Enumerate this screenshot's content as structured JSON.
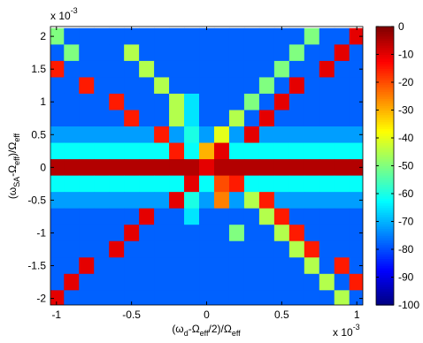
{
  "chart_data": {
    "type": "heatmap",
    "xlabel": [
      "(ω",
      "d",
      "-Ω",
      "eff",
      "/2)/Ω",
      "eff"
    ],
    "ylabel": [
      "(ω",
      "SA",
      "-Ω",
      "eff",
      ")/Ω",
      "eff"
    ],
    "xexp": [
      "x 10",
      "-3"
    ],
    "yexp": [
      "x 10",
      "-3"
    ],
    "colormap": "jet",
    "x": [
      -1,
      -0.9,
      -0.8,
      -0.7,
      -0.6,
      -0.5,
      -0.4,
      -0.3,
      -0.2,
      -0.1,
      0,
      0.1,
      0.2,
      0.3,
      0.4,
      0.5,
      0.6,
      0.7,
      0.8,
      0.9,
      1
    ],
    "y": [
      2,
      1.75,
      1.5,
      1.25,
      1,
      0.75,
      0.5,
      0.25,
      0,
      -0.25,
      -0.5,
      -0.75,
      -1,
      -1.25,
      -1.5,
      -1.75,
      -2
    ],
    "z": [
      [
        -50,
        -78,
        -78,
        -78,
        -78,
        -78,
        -78,
        -78,
        -78,
        -78,
        -78,
        -78,
        -78,
        -78,
        -78,
        -78,
        -78,
        -50,
        -78,
        -78,
        -10
      ],
      [
        -78,
        -50,
        -78,
        -78,
        -78,
        -45,
        -78,
        -78,
        -78,
        -78,
        -78,
        -78,
        -78,
        -78,
        -78,
        -78,
        -50,
        -78,
        -78,
        -10,
        -78
      ],
      [
        -15,
        -78,
        -78,
        -78,
        -78,
        -78,
        -45,
        -78,
        -78,
        -78,
        -78,
        -78,
        -78,
        -78,
        -78,
        -50,
        -78,
        -78,
        -10,
        -78,
        -78
      ],
      [
        -78,
        -78,
        -15,
        -78,
        -78,
        -78,
        -78,
        -45,
        -78,
        -78,
        -78,
        -78,
        -78,
        -78,
        -50,
        -78,
        -10,
        -78,
        -78,
        -78,
        -78
      ],
      [
        -78,
        -78,
        -78,
        -78,
        -15,
        -78,
        -78,
        -78,
        -45,
        -65,
        -78,
        -78,
        -78,
        -50,
        -78,
        -10,
        -78,
        -78,
        -78,
        -78,
        -78
      ],
      [
        -78,
        -78,
        -78,
        -78,
        -78,
        -15,
        -78,
        -78,
        -45,
        -65,
        -78,
        -78,
        -45,
        -78,
        -10,
        -78,
        -78,
        -78,
        -78,
        -78,
        -78
      ],
      [
        -72,
        -72,
        -72,
        -72,
        -72,
        -72,
        -72,
        -15,
        -72,
        -60,
        -72,
        -40,
        -72,
        -10,
        -72,
        -72,
        -72,
        -72,
        -72,
        -72,
        -72
      ],
      [
        -62,
        -62,
        -62,
        -62,
        -62,
        -62,
        -62,
        -62,
        -15,
        -62,
        -30,
        -10,
        -62,
        -62,
        -62,
        -62,
        -62,
        -62,
        -62,
        -62,
        -62
      ],
      [
        -5,
        -5,
        -5,
        -5,
        -5,
        -5,
        -5,
        -5,
        -5,
        -5,
        -10,
        -5,
        -5,
        -5,
        -5,
        -5,
        -5,
        -5,
        -5,
        -5,
        -5
      ],
      [
        -62,
        -62,
        -62,
        -62,
        -62,
        -62,
        -62,
        -62,
        -62,
        -10,
        -62,
        -20,
        -15,
        -62,
        -62,
        -62,
        -62,
        -62,
        -62,
        -62,
        -62
      ],
      [
        -72,
        -72,
        -72,
        -72,
        -72,
        -72,
        -72,
        -72,
        -10,
        -60,
        -72,
        -25,
        -72,
        -45,
        -15,
        -72,
        -72,
        -72,
        -72,
        -72,
        -72
      ],
      [
        -78,
        -78,
        -78,
        -78,
        -78,
        -78,
        -10,
        -78,
        -78,
        -65,
        -78,
        -78,
        -78,
        -78,
        -45,
        -15,
        -78,
        -78,
        -78,
        -78,
        -78
      ],
      [
        -78,
        -78,
        -78,
        -78,
        -78,
        -10,
        -78,
        -78,
        -78,
        -78,
        -78,
        -78,
        -50,
        -78,
        -78,
        -45,
        -15,
        -78,
        -78,
        -78,
        -78
      ],
      [
        -78,
        -78,
        -78,
        -78,
        -10,
        -78,
        -78,
        -78,
        -78,
        -78,
        -78,
        -78,
        -78,
        -78,
        -78,
        -78,
        -45,
        -15,
        -78,
        -78,
        -78
      ],
      [
        -78,
        -78,
        -10,
        -78,
        -78,
        -78,
        -78,
        -78,
        -78,
        -78,
        -78,
        -78,
        -78,
        -78,
        -78,
        -78,
        -78,
        -45,
        -78,
        -15,
        -78
      ],
      [
        -78,
        -10,
        -78,
        -78,
        -78,
        -78,
        -78,
        -78,
        -78,
        -78,
        -78,
        -78,
        -78,
        -78,
        -78,
        -78,
        -78,
        -78,
        -45,
        -78,
        -15
      ],
      [
        -10,
        -78,
        -78,
        -78,
        -78,
        -78,
        -78,
        -78,
        -78,
        -78,
        -78,
        -78,
        -78,
        -78,
        -78,
        -78,
        -78,
        -78,
        -78,
        -45,
        -78
      ]
    ],
    "xlim": [
      -1.04,
      1.04
    ],
    "ylim": [
      -2.1,
      2.15
    ],
    "zlim": [
      -100,
      0
    ],
    "xticks": [
      -1,
      -0.5,
      0,
      0.5,
      1
    ],
    "yticks": [
      -2,
      -1.5,
      -1,
      -0.5,
      0,
      0.5,
      1,
      1.5,
      2
    ],
    "zticks": [
      0,
      -10,
      -20,
      -30,
      -40,
      -50,
      -60,
      -70,
      -80,
      -90,
      -100
    ]
  }
}
